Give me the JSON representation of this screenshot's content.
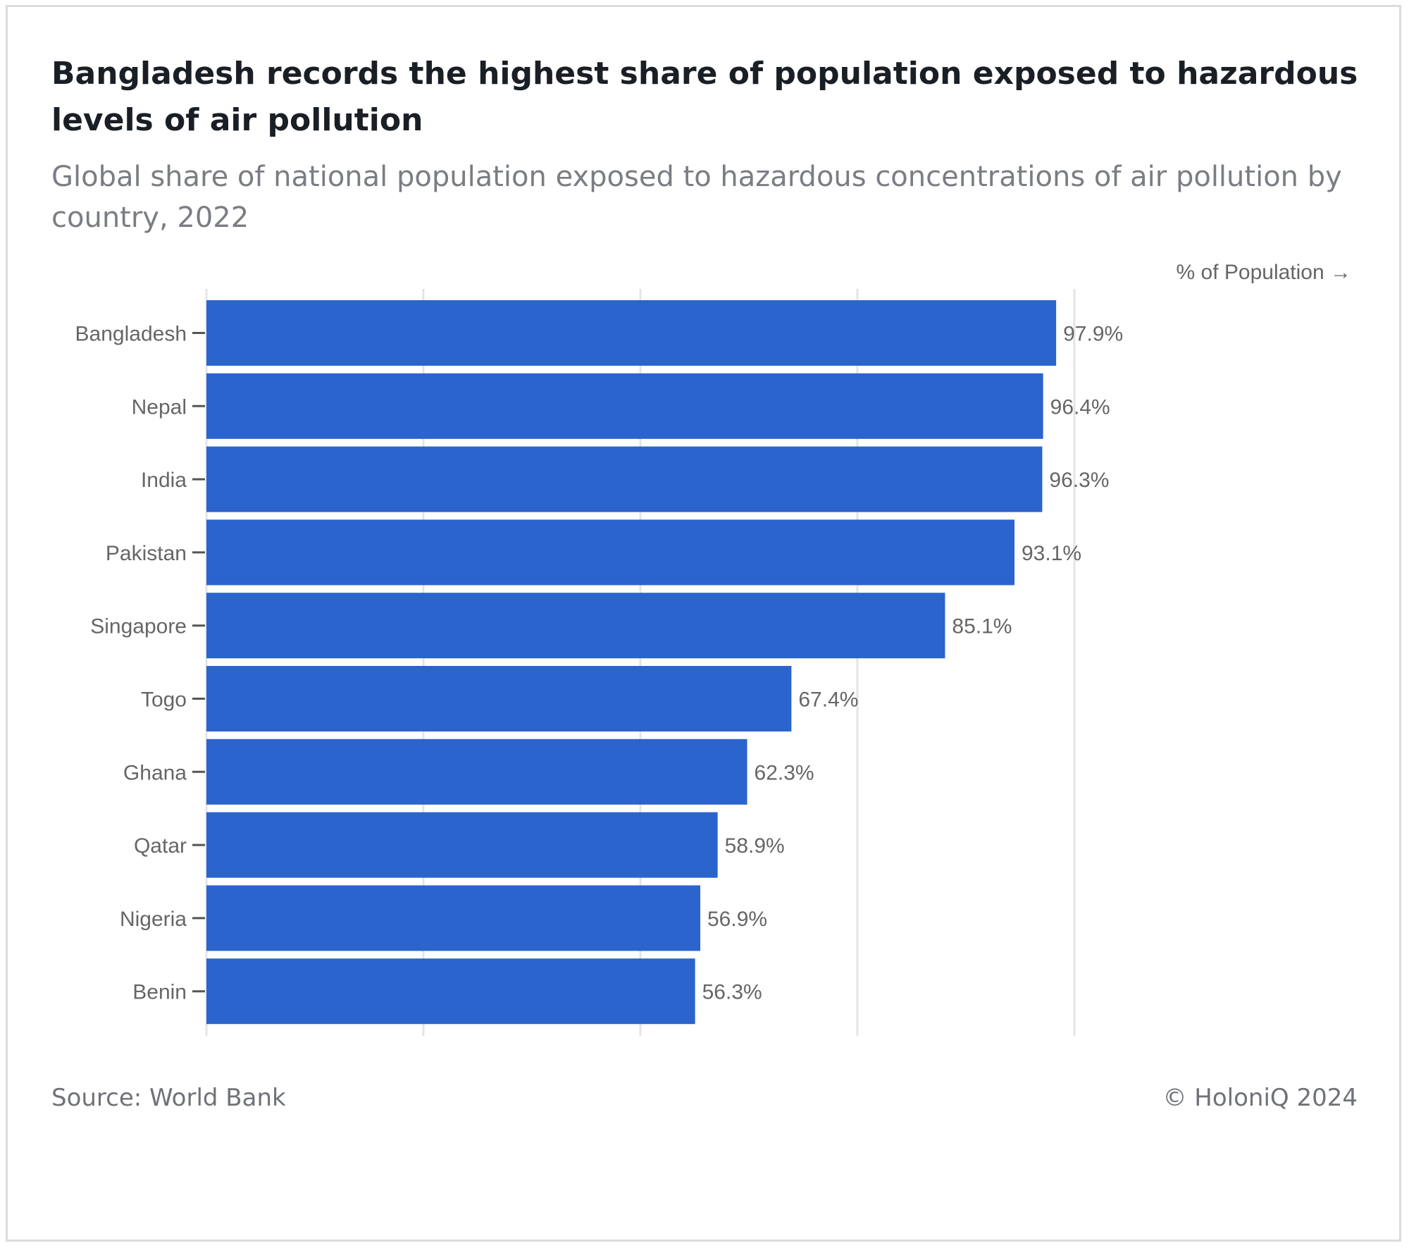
{
  "title": "Bangladesh records the highest share of population exposed to hazardous levels of air pollution",
  "subtitle": "Global share of national population exposed to hazardous concentrations of air pollution by country, 2022",
  "footer": {
    "source": "Source: World Bank",
    "copyright": "© HoloniQ 2024"
  },
  "colors": {
    "bar": "#2a64cc",
    "grid": "#e4e4e4",
    "label": "#666666",
    "tick": "#555555"
  },
  "chart_data": {
    "type": "bar",
    "orientation": "horizontal",
    "title": "Bangladesh records the highest share of population exposed to hazardous levels of air pollution",
    "subtitle": "Global share of national population exposed to hazardous concentrations of air pollution by country, 2022",
    "xlabel": "% of Population →",
    "ylabel": "",
    "xlim": [
      0,
      100
    ],
    "grid": true,
    "gridlines_at": [
      0,
      25,
      50,
      75,
      100
    ],
    "categories": [
      "Bangladesh",
      "Nepal",
      "India",
      "Pakistan",
      "Singapore",
      "Togo",
      "Ghana",
      "Qatar",
      "Nigeria",
      "Benin"
    ],
    "values": [
      97.9,
      96.4,
      96.3,
      93.1,
      85.1,
      67.4,
      62.3,
      58.9,
      56.9,
      56.3
    ],
    "value_labels": [
      "97.9%",
      "96.4%",
      "96.3%",
      "93.1%",
      "85.1%",
      "67.4%",
      "62.3%",
      "58.9%",
      "56.9%",
      "56.3%"
    ]
  }
}
